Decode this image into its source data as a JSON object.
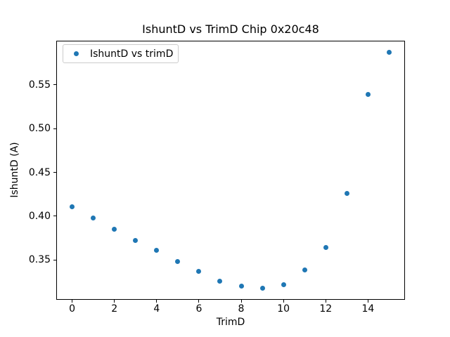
{
  "figure": {
    "title": "IshuntD vs TrimD Chip 0x20c48"
  },
  "chart_data": {
    "type": "scatter",
    "title": "IshuntD vs TrimD Chip 0x20c48",
    "xlabel": "TrimD",
    "ylabel": "IshuntD (A)",
    "legend": {
      "label": "IshuntD vs trimD",
      "position": "upper left",
      "border_color": "#cccccc"
    },
    "marker_color": "#1f77b4",
    "x": [
      0,
      1,
      2,
      3,
      4,
      5,
      6,
      7,
      8,
      9,
      10,
      11,
      12,
      13,
      14,
      15
    ],
    "y": [
      0.411,
      0.398,
      0.385,
      0.372,
      0.361,
      0.348,
      0.337,
      0.326,
      0.32,
      0.318,
      0.322,
      0.339,
      0.364,
      0.426,
      0.539,
      0.587
    ],
    "xlim": [
      -0.75,
      15.75
    ],
    "ylim": [
      0.3046,
      0.6004
    ],
    "xticks": [
      0,
      2,
      4,
      6,
      8,
      10,
      12,
      14
    ],
    "yticks": [
      0.35,
      0.4,
      0.45,
      0.5,
      0.55
    ],
    "grid": false
  }
}
